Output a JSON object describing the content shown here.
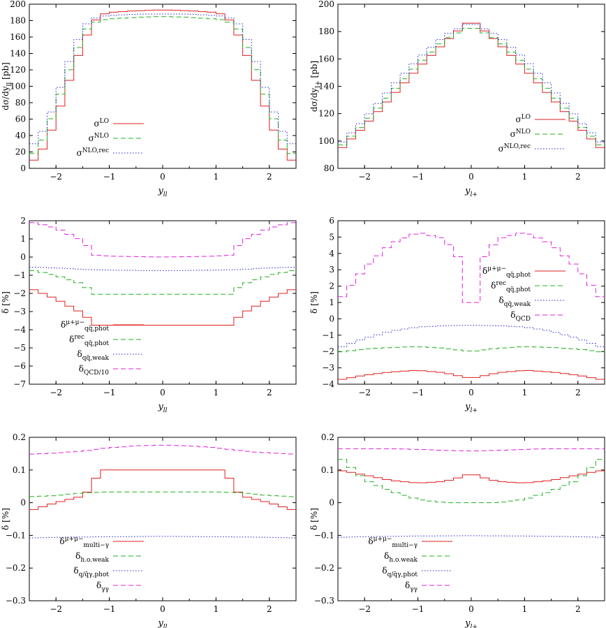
{
  "chart_data": [
    {
      "type": "line",
      "title": "",
      "xlabel": "y_ll",
      "ylabel": "dσ/dy_ll [pb]",
      "xlim": [
        -2.5,
        2.5
      ],
      "ylim": [
        0,
        200
      ],
      "yticks": [
        "0",
        "20",
        "40",
        "60",
        "80",
        "100",
        "120",
        "140",
        "160",
        "180",
        "200"
      ],
      "xticks": [
        "−2",
        "−1",
        "0",
        "1",
        "2"
      ],
      "legend_position": "bottom-left",
      "series": [
        {
          "name": "σ^LO",
          "color": "#e02020",
          "dash": "solid",
          "x": [
            -2.4,
            -2.2,
            -2.0,
            -1.8,
            -1.6,
            -1.4,
            -1.2,
            -1.0,
            -0.5,
            0.0,
            0.5,
            1.0,
            1.2,
            1.4,
            1.6,
            1.8,
            2.0,
            2.2,
            2.4
          ],
          "values": [
            10,
            28,
            60,
            98,
            135,
            165,
            186,
            190,
            192,
            193,
            192,
            190,
            186,
            165,
            135,
            98,
            60,
            28,
            10
          ]
        },
        {
          "name": "σ^NLO",
          "color": "#20b020",
          "dash": "dashed",
          "x": [
            -2.4,
            -2.2,
            -2.0,
            -1.8,
            -1.6,
            -1.4,
            -1.2,
            -1.0,
            -0.5,
            0.0,
            0.5,
            1.0,
            1.2,
            1.4,
            1.6,
            1.8,
            2.0,
            2.2,
            2.4
          ],
          "values": [
            18,
            40,
            75,
            112,
            145,
            172,
            180,
            182,
            184,
            185,
            184,
            182,
            180,
            172,
            145,
            112,
            75,
            40,
            18
          ]
        },
        {
          "name": "σ^NLO,rec",
          "color": "#2020d0",
          "dash": "dotted",
          "x": [
            -2.4,
            -2.2,
            -2.0,
            -1.8,
            -1.6,
            -1.4,
            -1.2,
            -1.0,
            -0.5,
            0.0,
            0.5,
            1.0,
            1.2,
            1.4,
            1.6,
            1.8,
            2.0,
            2.2,
            2.4
          ],
          "values": [
            30,
            50,
            82,
            122,
            155,
            178,
            185,
            186,
            188,
            188,
            188,
            186,
            185,
            178,
            155,
            122,
            82,
            50,
            30
          ]
        }
      ]
    },
    {
      "type": "line",
      "title": "",
      "xlabel": "y_l+",
      "ylabel": "dσ/dy_l+ [pb]",
      "xlim": [
        -2.5,
        2.5
      ],
      "ylim": [
        80,
        200
      ],
      "yticks": [
        "80",
        "100",
        "120",
        "140",
        "160",
        "180",
        "200"
      ],
      "xticks": [
        "−2",
        "−1",
        "0",
        "1",
        "2"
      ],
      "legend_position": "bottom-right",
      "series": [
        {
          "name": "σ^LO",
          "color": "#e02020",
          "dash": "solid",
          "x": [
            -2.5,
            -2.0,
            -1.5,
            -1.0,
            -0.5,
            0.0,
            0.5,
            1.0,
            1.5,
            2.0,
            2.5
          ],
          "values": [
            92,
            111,
            132,
            153,
            172,
            189,
            172,
            153,
            132,
            111,
            92
          ]
        },
        {
          "name": "σ^NLO",
          "color": "#20b020",
          "dash": "dashed",
          "x": [
            -2.5,
            -2.0,
            -1.5,
            -1.0,
            -0.5,
            0.0,
            0.5,
            1.0,
            1.5,
            2.0,
            2.5
          ],
          "values": [
            94,
            113,
            135,
            156,
            174,
            184,
            174,
            156,
            135,
            113,
            94
          ]
        },
        {
          "name": "σ^NLO,rec",
          "color": "#2020d0",
          "dash": "dotted",
          "x": [
            -2.5,
            -2.0,
            -1.5,
            -1.0,
            -0.5,
            0.0,
            0.5,
            1.0,
            1.5,
            2.0,
            2.5
          ],
          "values": [
            96,
            116,
            139,
            160,
            177,
            187,
            177,
            160,
            139,
            116,
            96
          ]
        }
      ]
    },
    {
      "type": "line",
      "title": "",
      "xlabel": "y_ll",
      "ylabel": "δ [%]",
      "xlim": [
        -2.5,
        2.5
      ],
      "ylim": [
        -7,
        2
      ],
      "yticks": [
        "−7",
        "−6",
        "−5",
        "−4",
        "−3",
        "−2",
        "−1",
        "0",
        "1",
        "2"
      ],
      "xticks": [
        "−2",
        "−1",
        "0",
        "1",
        "2"
      ],
      "legend_position": "bottom-left",
      "series": [
        {
          "name": "δ^{μ+μ−}_{qq̄,phot}",
          "color": "#e02020",
          "dash": "solid",
          "x": [
            -2.5,
            -2.0,
            -1.5,
            -1.25,
            -1.0,
            0.0,
            1.0,
            1.25,
            1.5,
            2.0,
            2.5
          ],
          "values": [
            -1.7,
            -2.3,
            -3.1,
            -3.75,
            -3.75,
            -3.75,
            -3.75,
            -3.75,
            -3.1,
            -2.3,
            -1.7
          ]
        },
        {
          "name": "δ^{rec}_{qq̄,phot}",
          "color": "#20b020",
          "dash": "dashed",
          "x": [
            -2.5,
            -2.0,
            -1.5,
            -1.25,
            -1.0,
            0.0,
            1.0,
            1.25,
            1.5,
            2.0,
            2.5
          ],
          "values": [
            -0.7,
            -1.0,
            -1.5,
            -2.05,
            -2.05,
            -2.05,
            -2.05,
            -2.05,
            -1.5,
            -1.0,
            -0.7
          ]
        },
        {
          "name": "δ_{qq̄,weak}",
          "color": "#2020d0",
          "dash": "dotted",
          "x": [
            -2.5,
            -2.0,
            -1.5,
            -1.0,
            0.0,
            1.0,
            1.5,
            2.0,
            2.5
          ],
          "values": [
            -0.55,
            -0.6,
            -0.68,
            -0.72,
            -0.75,
            -0.72,
            -0.68,
            -0.6,
            -0.55
          ]
        },
        {
          "name": "δ_QCD/10",
          "color": "#e020e0",
          "dash": "dashed",
          "x": [
            -2.5,
            -2.0,
            -1.5,
            -1.25,
            -1.0,
            0.0,
            1.0,
            1.25,
            1.5,
            2.0,
            2.5
          ],
          "values": [
            1.95,
            1.6,
            0.9,
            0.1,
            0.05,
            0.0,
            0.05,
            0.1,
            0.9,
            1.6,
            1.95
          ]
        }
      ]
    },
    {
      "type": "line",
      "title": "",
      "xlabel": "y_l+",
      "ylabel": "δ [%]",
      "xlim": [
        -2.5,
        2.5
      ],
      "ylim": [
        -4,
        6
      ],
      "yticks": [
        "−4",
        "−3",
        "−2",
        "−1",
        "0",
        "1",
        "2",
        "3",
        "4",
        "5",
        "6"
      ],
      "xticks": [
        "−2",
        "−1",
        "0",
        "1",
        "2"
      ],
      "legend_position": "top-right",
      "series": [
        {
          "name": "δ^{μ+μ−}_{qq̄,phot}",
          "color": "#e02020",
          "dash": "solid",
          "x": [
            -2.5,
            -2.0,
            -1.5,
            -1.0,
            -0.5,
            0.0,
            0.5,
            1.0,
            1.5,
            2.0,
            2.5
          ],
          "values": [
            -3.75,
            -3.45,
            -3.25,
            -3.15,
            -3.3,
            -3.65,
            -3.3,
            -3.15,
            -3.25,
            -3.45,
            -3.75
          ]
        },
        {
          "name": "δ^{rec}_{qq̄,phot}",
          "color": "#20b020",
          "dash": "dashed",
          "x": [
            -2.5,
            -2.0,
            -1.5,
            -1.0,
            -0.5,
            0.0,
            0.5,
            1.0,
            1.5,
            2.0,
            2.5
          ],
          "values": [
            -2.05,
            -1.85,
            -1.75,
            -1.7,
            -1.8,
            -2.0,
            -1.8,
            -1.7,
            -1.75,
            -1.85,
            -2.05
          ]
        },
        {
          "name": "δ_{qq̄,weak}",
          "color": "#2020d0",
          "dash": "dotted",
          "x": [
            -2.5,
            -2.0,
            -1.5,
            -1.0,
            -0.5,
            0.0,
            0.5,
            1.0,
            1.5,
            2.0,
            2.5
          ],
          "values": [
            -1.8,
            -1.2,
            -0.75,
            -0.5,
            -0.42,
            -0.4,
            -0.42,
            -0.5,
            -0.75,
            -1.2,
            -1.8
          ]
        },
        {
          "name": "δ_QCD",
          "color": "#e020e0",
          "dash": "dashed",
          "x": [
            -2.5,
            -2.0,
            -1.5,
            -1.0,
            -0.5,
            -0.25,
            -0.1,
            0.1,
            0.25,
            0.5,
            1.0,
            1.5,
            2.0,
            2.5
          ],
          "values": [
            1.0,
            3.1,
            4.6,
            5.3,
            4.9,
            3.8,
            1.0,
            1.0,
            3.8,
            4.9,
            5.3,
            4.6,
            3.1,
            1.0
          ]
        }
      ]
    },
    {
      "type": "line",
      "title": "",
      "xlabel": "y_ll",
      "ylabel": "δ [%]",
      "xlim": [
        -2.5,
        2.5
      ],
      "ylim": [
        -0.3,
        0.2
      ],
      "yticks": [
        "−0.3",
        "−0.2",
        "−0.1",
        "0",
        "0.1",
        "0.2"
      ],
      "xticks": [
        "−2",
        "−1",
        "0",
        "1",
        "2"
      ],
      "legend_position": "bottom-left",
      "series": [
        {
          "name": "δ^{μ+μ−}_{multi−γ}",
          "color": "#e02020",
          "dash": "solid",
          "x": [
            -2.5,
            -2.0,
            -1.5,
            -1.3,
            -1.2,
            0.0,
            1.2,
            1.3,
            1.5,
            2.0,
            2.5
          ],
          "values": [
            -0.025,
            0.0,
            0.02,
            0.05,
            0.1,
            0.1,
            0.1,
            0.05,
            0.02,
            0.0,
            -0.025
          ]
        },
        {
          "name": "δ_{h.o.weak}",
          "color": "#20b020",
          "dash": "dashed",
          "x": [
            -2.5,
            -2.0,
            -1.5,
            -1.0,
            0.0,
            1.0,
            1.5,
            2.0,
            2.5
          ],
          "values": [
            0.018,
            0.022,
            0.03,
            0.033,
            0.033,
            0.033,
            0.03,
            0.022,
            0.018
          ]
        },
        {
          "name": "δ_{q/q̄γ,phot}",
          "color": "#2020d0",
          "dash": "dotted",
          "x": [
            -2.5,
            -2.0,
            -1.0,
            0.0,
            1.0,
            2.0,
            2.5
          ],
          "values": [
            -0.108,
            -0.106,
            -0.104,
            -0.103,
            -0.104,
            -0.106,
            -0.108
          ]
        },
        {
          "name": "δ_{γγ}",
          "color": "#e020e0",
          "dash": "dashed",
          "x": [
            -2.5,
            -2.0,
            -1.5,
            -1.0,
            -0.5,
            0.0,
            0.5,
            1.0,
            1.5,
            2.0,
            2.5
          ],
          "values": [
            0.148,
            0.152,
            0.158,
            0.168,
            0.174,
            0.176,
            0.174,
            0.168,
            0.158,
            0.152,
            0.148
          ]
        }
      ]
    },
    {
      "type": "line",
      "title": "",
      "xlabel": "y_l+",
      "ylabel": "δ [%]",
      "xlim": [
        -2.5,
        2.5
      ],
      "ylim": [
        -0.3,
        0.2
      ],
      "yticks": [
        "−0.3",
        "−0.2",
        "−0.1",
        "0",
        "0.1",
        "0.2"
      ],
      "xticks": [
        "−2",
        "−1",
        "0",
        "1",
        "2"
      ],
      "legend_position": "bottom-left",
      "series": [
        {
          "name": "δ^{μ+μ−}_{multi−γ}",
          "color": "#e02020",
          "dash": "solid",
          "x": [
            -2.5,
            -2.0,
            -1.5,
            -1.0,
            -0.5,
            -0.2,
            0.0,
            0.2,
            0.5,
            1.0,
            1.5,
            2.0,
            2.5
          ],
          "values": [
            0.1,
            0.085,
            0.068,
            0.06,
            0.065,
            0.078,
            0.09,
            0.078,
            0.065,
            0.06,
            0.068,
            0.085,
            0.1
          ]
        },
        {
          "name": "δ_{h.o.weak}",
          "color": "#20b020",
          "dash": "dashed",
          "x": [
            -2.5,
            -2.0,
            -1.5,
            -1.0,
            -0.5,
            0.0,
            0.5,
            1.0,
            1.5,
            2.0,
            2.5
          ],
          "values": [
            0.145,
            0.07,
            0.035,
            0.01,
            0.0,
            0.0,
            0.0,
            0.01,
            0.035,
            0.07,
            0.145
          ]
        },
        {
          "name": "δ_{q/q̄γ,phot}",
          "color": "#2020d0",
          "dash": "dotted",
          "x": [
            -2.5,
            -2.0,
            -1.0,
            0.0,
            1.0,
            2.0,
            2.5
          ],
          "values": [
            -0.106,
            -0.104,
            -0.102,
            -0.101,
            -0.102,
            -0.104,
            -0.106
          ]
        },
        {
          "name": "δ_{γγ}",
          "color": "#e020e0",
          "dash": "dashed",
          "x": [
            -2.5,
            -2.0,
            -1.5,
            -1.0,
            -0.5,
            0.0,
            0.5,
            1.0,
            1.5,
            2.0,
            2.5
          ],
          "values": [
            0.165,
            0.165,
            0.165,
            0.163,
            0.16,
            0.158,
            0.16,
            0.163,
            0.165,
            0.165,
            0.165
          ]
        }
      ]
    }
  ]
}
